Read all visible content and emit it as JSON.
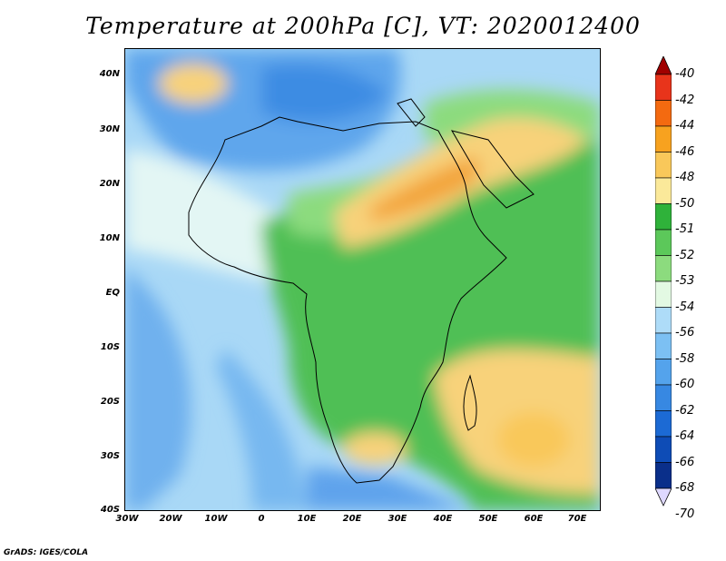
{
  "title": "Temperature at 200hPa [C], VT: 2020012400",
  "footer": "GrADS: IGES/COLA",
  "lat_labels": [
    "40N",
    "30N",
    "20N",
    "10N",
    "EQ",
    "10S",
    "20S",
    "30S",
    "40S"
  ],
  "lon_labels": [
    "30W",
    "20W",
    "10W",
    "0",
    "10E",
    "20E",
    "30E",
    "40E",
    "50E",
    "60E",
    "70E"
  ],
  "colorbar": {
    "labels": [
      "-40",
      "-42",
      "-44",
      "-46",
      "-48",
      "-50",
      "-51",
      "-52",
      "-53",
      "-54",
      "-56",
      "-58",
      "-60",
      "-62",
      "-64",
      "-66",
      "-68",
      "-70"
    ],
    "colors": [
      "#a00000",
      "#e8341b",
      "#f46a10",
      "#f7a21f",
      "#f9c85a",
      "#fbe99a",
      "#2fb23a",
      "#5cc85a",
      "#8cdb7e",
      "#e3f9e3",
      "#aedcf8",
      "#7cc0f3",
      "#54a3ec",
      "#3788e2",
      "#1c6ad4",
      "#0e4cb6",
      "#0a2f8a",
      "#ded8ff"
    ]
  },
  "legend_colors": {
    "ocean": "#a7d6f6",
    "land": "#4fbf55",
    "warm": "#f8d27a",
    "hot": "#f3a43a",
    "cold": "#5aa5ee"
  }
}
